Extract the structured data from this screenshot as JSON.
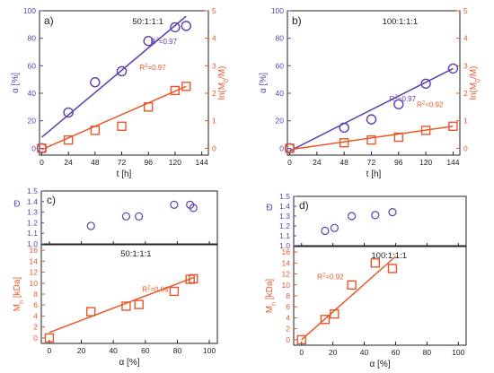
{
  "colors": {
    "purple": "#5b3fb0",
    "orange": "#e8572a",
    "black": "#222222"
  },
  "chart_data": [
    {
      "panel": "a)",
      "type": "scatter",
      "ratio_label": "50:1:1:1",
      "xlabel": "t [h]",
      "ylabel_left": "α [%]",
      "ylabel_right": "ln(M0/M)",
      "xlim": [
        -2,
        150
      ],
      "xticks": [
        0,
        24,
        48,
        72,
        96,
        120,
        144
      ],
      "ylim_left": [
        -5,
        100
      ],
      "yticks_left": [
        0,
        20,
        40,
        60,
        80,
        100
      ],
      "ylim_right": [
        -0.25,
        5
      ],
      "yticks_right": [
        0,
        1,
        2,
        3,
        4,
        5
      ],
      "series": [
        {
          "marker": "circle",
          "color": "#5b3fb0",
          "axis": "left",
          "x": [
            0,
            24,
            48,
            72,
            96,
            120,
            130
          ],
          "y": [
            0,
            26,
            48,
            56,
            78,
            88,
            89
          ],
          "fit": [
            [
              0,
              8
            ],
            [
              130,
              96
            ]
          ],
          "r2": "R²=0.97",
          "r2_at": [
            98,
            76
          ]
        },
        {
          "marker": "square",
          "color": "#e8572a",
          "axis": "right",
          "x": [
            0,
            24,
            48,
            72,
            96,
            120,
            130
          ],
          "y": [
            0,
            0.3,
            0.65,
            0.8,
            1.5,
            2.1,
            2.25
          ],
          "fit": [
            [
              0,
              -0.05
            ],
            [
              130,
              2.25
            ]
          ],
          "r2": "R²=0.97",
          "r2_at": [
            88,
            2.85
          ]
        }
      ]
    },
    {
      "panel": "b)",
      "type": "scatter",
      "ratio_label": "100:1:1:1",
      "xlabel": "t [h]",
      "ylabel_left": "α [%]",
      "ylabel_right": "ln(M0/M)",
      "xlim": [
        -2,
        150
      ],
      "xticks": [
        0,
        24,
        48,
        72,
        96,
        120,
        144
      ],
      "ylim_left": [
        -5,
        100
      ],
      "yticks_left": [
        0,
        20,
        40,
        60,
        80,
        100
      ],
      "ylim_right": [
        -0.25,
        5
      ],
      "yticks_right": [
        0,
        1,
        2,
        3,
        4,
        5
      ],
      "series": [
        {
          "marker": "circle",
          "color": "#5b3fb0",
          "axis": "left",
          "x": [
            0,
            48,
            72,
            96,
            120,
            144
          ],
          "y": [
            0,
            15,
            21,
            32,
            47,
            58
          ],
          "fit": [
            [
              0,
              -2
            ],
            [
              144,
              58
            ]
          ],
          "r2": "R²=0.97",
          "r2_at": [
            88,
            34
          ]
        },
        {
          "marker": "square",
          "color": "#e8572a",
          "axis": "right",
          "x": [
            0,
            48,
            72,
            96,
            120,
            144
          ],
          "y": [
            0,
            0.2,
            0.3,
            0.4,
            0.65,
            0.8
          ],
          "fit": [
            [
              0,
              -0.05
            ],
            [
              144,
              0.8
            ]
          ],
          "r2": "R²=0.92",
          "r2_at": [
            112,
            1.5
          ]
        }
      ]
    },
    {
      "panel": "c)",
      "type": "scatter",
      "ratio_label": "50:1:1:1",
      "xlabel": "α [%]",
      "ylabel_top": "Đ",
      "ylabel_bottom": "Mn [kDa]",
      "xlim": [
        -5,
        105
      ],
      "xticks": [
        0,
        20,
        40,
        60,
        80,
        100
      ],
      "ylim_top": [
        1.0,
        1.5
      ],
      "yticks_top": [
        1.0,
        1.1,
        1.2,
        1.3,
        1.4,
        1.5
      ],
      "ylim_bottom": [
        -1,
        17
      ],
      "yticks_bottom": [
        0,
        2,
        4,
        6,
        8,
        10,
        12,
        14,
        16
      ],
      "dispersity": {
        "x": [
          26,
          48,
          56,
          78,
          88,
          90
        ],
        "y": [
          1.17,
          1.26,
          1.26,
          1.37,
          1.37,
          1.34
        ]
      },
      "mn": {
        "x": [
          0,
          26,
          48,
          56,
          78,
          88,
          90
        ],
        "y": [
          0,
          4.8,
          5.8,
          6.1,
          8.5,
          10.7,
          10.8
        ],
        "fit": [
          [
            0,
            1.0
          ],
          [
            90,
            11.0
          ]
        ],
        "r2": "R²=0.96",
        "r2_at": [
          58,
          8.4
        ]
      }
    },
    {
      "panel": "d)",
      "type": "scatter",
      "ratio_label": "100:1:1:1",
      "xlabel": "α [%]",
      "ylabel_top": "Đ",
      "ylabel_bottom": "Mn [kDa]",
      "xlim": [
        -5,
        105
      ],
      "xticks": [
        0,
        20,
        40,
        60,
        80,
        100
      ],
      "ylim_top": [
        1.0,
        1.5
      ],
      "yticks_top": [
        1.0,
        1.1,
        1.2,
        1.3,
        1.4,
        1.5
      ],
      "ylim_bottom": [
        -1,
        17
      ],
      "yticks_bottom": [
        0,
        2,
        4,
        6,
        8,
        10,
        12,
        14,
        16
      ],
      "dispersity": {
        "x": [
          15,
          21,
          32,
          47,
          58
        ],
        "y": [
          1.15,
          1.18,
          1.3,
          1.31,
          1.34
        ]
      },
      "mn": {
        "x": [
          0,
          15,
          21,
          32,
          47,
          58
        ],
        "y": [
          0,
          3.7,
          4.7,
          10,
          14,
          13
        ],
        "fit": [
          [
            0,
            0
          ],
          [
            60,
            15.2
          ]
        ],
        "r2": "R²=0.92",
        "r2_at": [
          10,
          11
        ]
      }
    }
  ]
}
